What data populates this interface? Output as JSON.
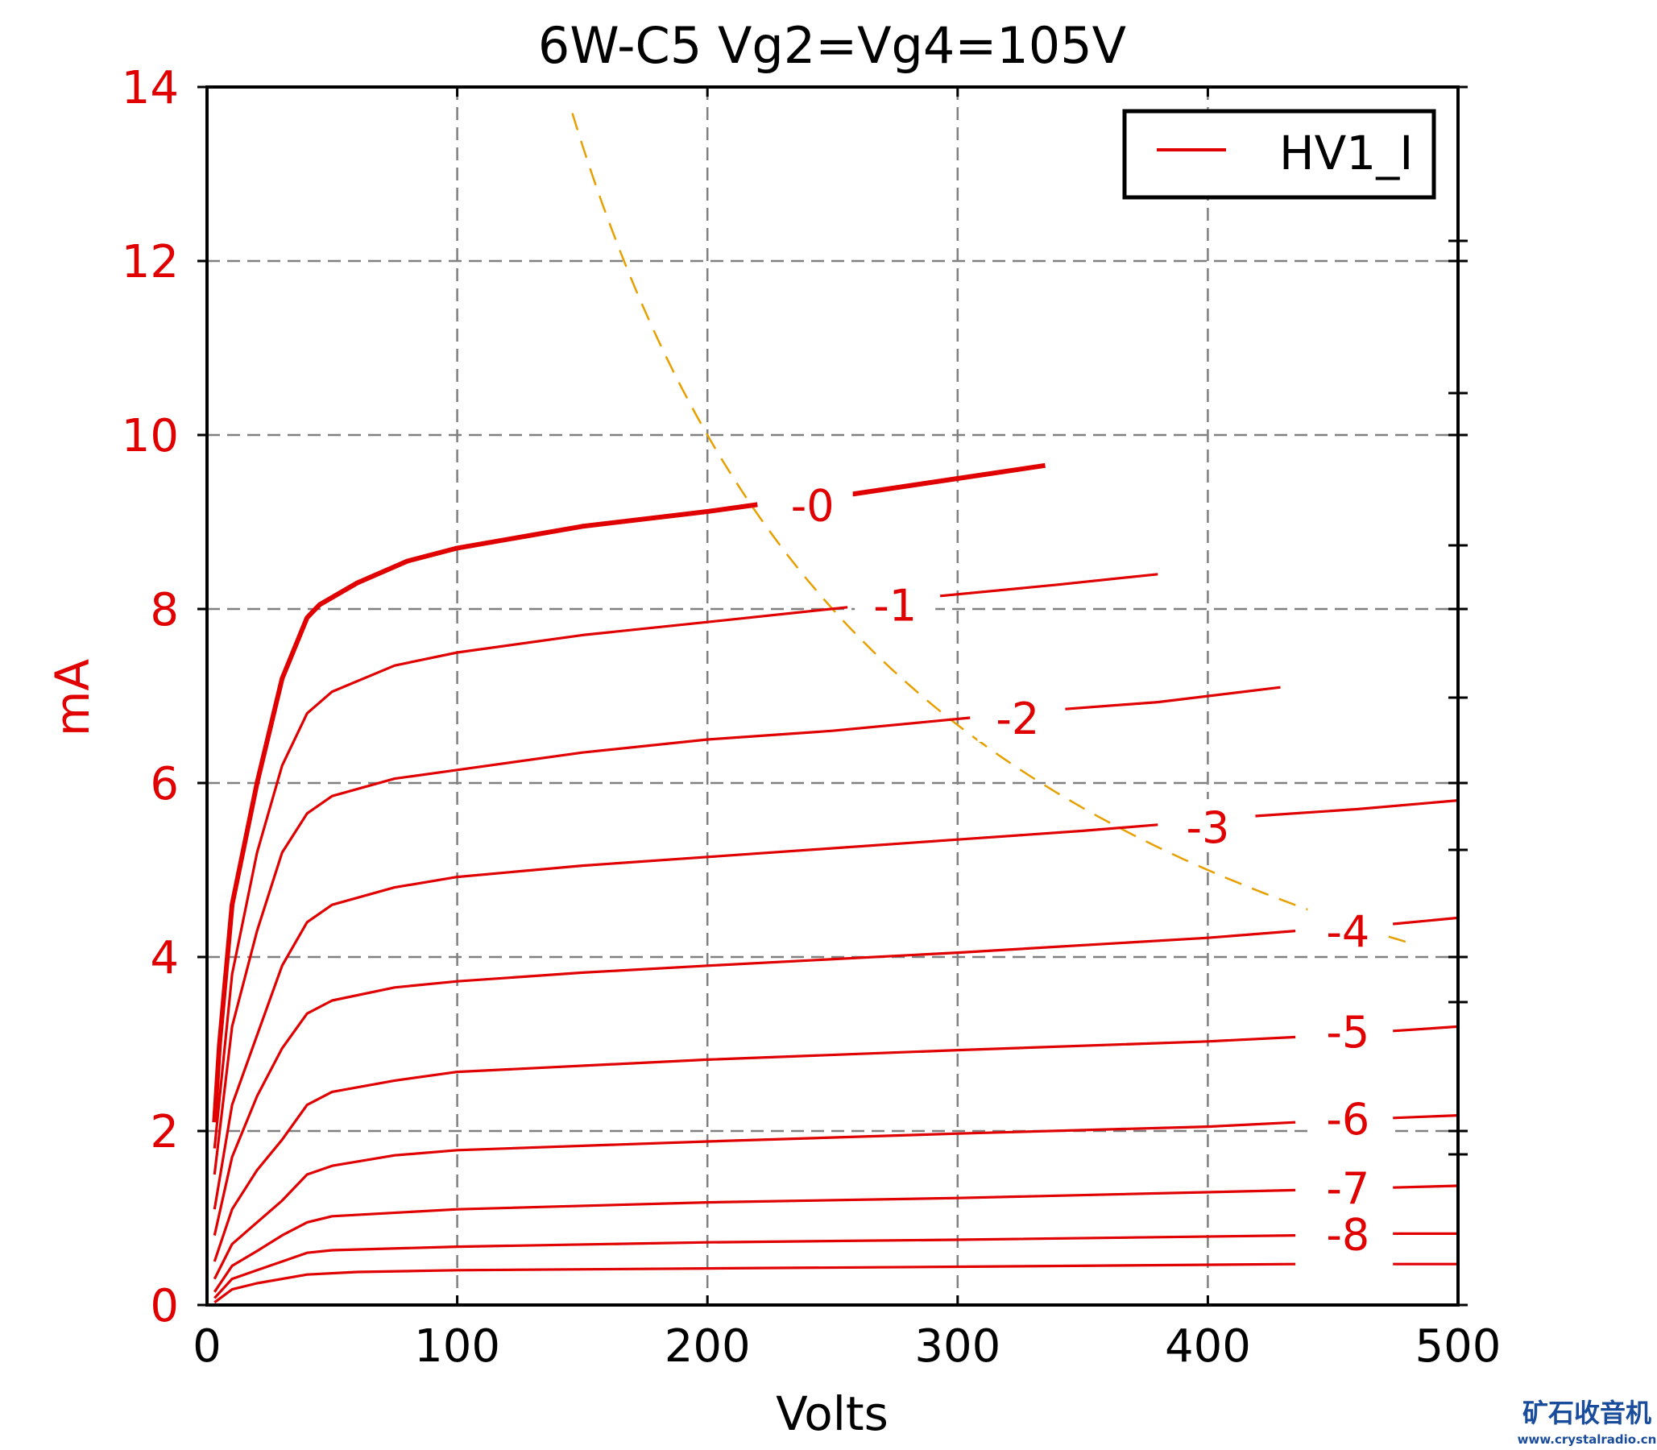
{
  "chart_data": {
    "type": "line",
    "title": "6W-C5 Vg2=Vg4=105V",
    "xlabel": "Volts",
    "ylabel": "mA",
    "xlim": [
      0,
      500
    ],
    "ylim": [
      0,
      14
    ],
    "xticks": [
      "0",
      "100",
      "200",
      "300",
      "400",
      "500"
    ],
    "yticks": [
      "0",
      "2",
      "4",
      "6",
      "8",
      "10",
      "12",
      "14"
    ],
    "grid": true,
    "legend": {
      "position": "top-right",
      "entries": [
        "HV1_I"
      ]
    },
    "colors": {
      "curve": "#e00000",
      "axis_label": "#e00000",
      "load_line": "#e8a000",
      "grid": "#808080"
    },
    "series": [
      {
        "name": "-0",
        "label_at": [
          242,
          9.2
        ],
        "bold": true,
        "segments": [
          [
            [
              3,
              2.1
            ],
            [
              5,
              3.0
            ],
            [
              10,
              4.6
            ],
            [
              20,
              6.0
            ],
            [
              30,
              7.2
            ],
            [
              40,
              7.9
            ],
            [
              45,
              8.05
            ],
            [
              60,
              8.3
            ],
            [
              80,
              8.55
            ],
            [
              100,
              8.7
            ],
            [
              150,
              8.95
            ],
            [
              200,
              9.12
            ],
            [
              220,
              9.2
            ]
          ],
          [
            [
              258,
              9.32
            ],
            [
              300,
              9.5
            ],
            [
              335,
              9.65
            ]
          ]
        ]
      },
      {
        "name": "-1",
        "label_at": [
          275,
          8.05
        ],
        "segments": [
          [
            [
              3,
              1.8
            ],
            [
              10,
              3.8
            ],
            [
              20,
              5.2
            ],
            [
              30,
              6.2
            ],
            [
              40,
              6.8
            ],
            [
              50,
              7.05
            ],
            [
              75,
              7.35
            ],
            [
              100,
              7.5
            ],
            [
              150,
              7.7
            ],
            [
              200,
              7.85
            ],
            [
              256,
              8.02
            ]
          ],
          [
            [
              293,
              8.15
            ],
            [
              340,
              8.28
            ],
            [
              380,
              8.4
            ]
          ]
        ]
      },
      {
        "name": "-2",
        "label_at": [
          324,
          6.75
        ],
        "segments": [
          [
            [
              3,
              1.5
            ],
            [
              10,
              3.2
            ],
            [
              20,
              4.3
            ],
            [
              30,
              5.2
            ],
            [
              40,
              5.65
            ],
            [
              50,
              5.85
            ],
            [
              75,
              6.05
            ],
            [
              100,
              6.15
            ],
            [
              150,
              6.35
            ],
            [
              200,
              6.5
            ],
            [
              250,
              6.6
            ],
            [
              305,
              6.75
            ]
          ],
          [
            [
              343,
              6.85
            ],
            [
              380,
              6.93
            ],
            [
              429,
              7.1
            ]
          ]
        ]
      },
      {
        "name": "-3",
        "label_at": [
          400,
          5.5
        ],
        "segments": [
          [
            [
              3,
              1.1
            ],
            [
              10,
              2.3
            ],
            [
              20,
              3.1
            ],
            [
              30,
              3.9
            ],
            [
              40,
              4.4
            ],
            [
              50,
              4.6
            ],
            [
              75,
              4.8
            ],
            [
              100,
              4.92
            ],
            [
              150,
              5.05
            ],
            [
              200,
              5.15
            ],
            [
              250,
              5.25
            ],
            [
              300,
              5.35
            ],
            [
              350,
              5.45
            ],
            [
              380,
              5.52
            ]
          ],
          [
            [
              419,
              5.62
            ],
            [
              460,
              5.7
            ],
            [
              500,
              5.8
            ]
          ]
        ]
      },
      {
        "name": "-4",
        "label_at": [
          456,
          4.3
        ],
        "segments": [
          [
            [
              3,
              0.8
            ],
            [
              10,
              1.7
            ],
            [
              20,
              2.4
            ],
            [
              30,
              2.95
            ],
            [
              40,
              3.35
            ],
            [
              50,
              3.5
            ],
            [
              75,
              3.65
            ],
            [
              100,
              3.72
            ],
            [
              150,
              3.82
            ],
            [
              200,
              3.9
            ],
            [
              300,
              4.05
            ],
            [
              400,
              4.22
            ],
            [
              435,
              4.3
            ]
          ],
          [
            [
              474,
              4.38
            ],
            [
              500,
              4.45
            ]
          ]
        ]
      },
      {
        "name": "-5",
        "label_at": [
          456,
          3.15
        ],
        "segments": [
          [
            [
              3,
              0.5
            ],
            [
              10,
              1.1
            ],
            [
              20,
              1.55
            ],
            [
              30,
              1.9
            ],
            [
              40,
              2.3
            ],
            [
              50,
              2.45
            ],
            [
              75,
              2.58
            ],
            [
              100,
              2.68
            ],
            [
              200,
              2.82
            ],
            [
              300,
              2.93
            ],
            [
              400,
              3.03
            ],
            [
              435,
              3.08
            ]
          ],
          [
            [
              474,
              3.15
            ],
            [
              500,
              3.2
            ]
          ]
        ]
      },
      {
        "name": "-6",
        "label_at": [
          456,
          2.15
        ],
        "segments": [
          [
            [
              3,
              0.3
            ],
            [
              10,
              0.7
            ],
            [
              20,
              0.95
            ],
            [
              30,
              1.2
            ],
            [
              40,
              1.5
            ],
            [
              50,
              1.6
            ],
            [
              75,
              1.72
            ],
            [
              100,
              1.78
            ],
            [
              200,
              1.88
            ],
            [
              300,
              1.97
            ],
            [
              400,
              2.05
            ],
            [
              435,
              2.1
            ]
          ],
          [
            [
              474,
              2.15
            ],
            [
              500,
              2.18
            ]
          ]
        ]
      },
      {
        "name": "-7",
        "label_at": [
          456,
          1.35
        ],
        "segments": [
          [
            [
              3,
              0.15
            ],
            [
              10,
              0.45
            ],
            [
              20,
              0.62
            ],
            [
              30,
              0.8
            ],
            [
              40,
              0.95
            ],
            [
              50,
              1.02
            ],
            [
              100,
              1.1
            ],
            [
              200,
              1.18
            ],
            [
              300,
              1.23
            ],
            [
              435,
              1.32
            ]
          ],
          [
            [
              474,
              1.35
            ],
            [
              500,
              1.37
            ]
          ]
        ]
      },
      {
        "name": "-8",
        "label_at": [
          456,
          0.82
        ],
        "segments": [
          [
            [
              3,
              0.08
            ],
            [
              10,
              0.3
            ],
            [
              20,
              0.4
            ],
            [
              30,
              0.5
            ],
            [
              40,
              0.6
            ],
            [
              50,
              0.63
            ],
            [
              100,
              0.67
            ],
            [
              200,
              0.72
            ],
            [
              300,
              0.75
            ],
            [
              435,
              0.8
            ]
          ],
          [
            [
              474,
              0.82
            ],
            [
              500,
              0.82
            ]
          ]
        ]
      },
      {
        "name": "",
        "label_at": null,
        "segments": [
          [
            [
              3,
              0.03
            ],
            [
              10,
              0.18
            ],
            [
              20,
              0.25
            ],
            [
              40,
              0.35
            ],
            [
              60,
              0.38
            ],
            [
              100,
              0.4
            ],
            [
              200,
              0.42
            ],
            [
              300,
              0.44
            ],
            [
              435,
              0.47
            ]
          ],
          [
            [
              474,
              0.47
            ],
            [
              500,
              0.47
            ]
          ]
        ]
      }
    ],
    "load_line": {
      "type": "constant-power",
      "power_mW": 2000,
      "x_range": [
        146,
        480
      ]
    }
  },
  "watermark": {
    "name": "矿石收音机",
    "url": "www.crystalradio.cn"
  }
}
